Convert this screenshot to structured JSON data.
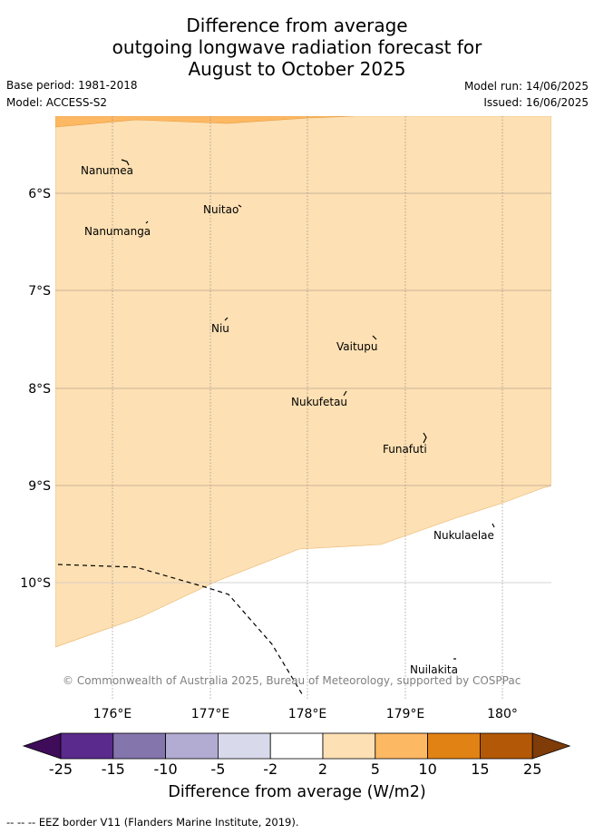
{
  "title_lines": [
    "Difference from average",
    "outgoing longwave radiation forecast for",
    "August to October 2025"
  ],
  "meta": {
    "base_period": "Base period: 1981-2018",
    "model": "Model: ACCESS-S2",
    "model_run": "Model run: 14/06/2025",
    "issued": "Issued: 16/06/2025"
  },
  "map": {
    "lat_labels": [
      "6°S",
      "7°S",
      "8°S",
      "9°S",
      "10°S"
    ],
    "lon_labels": [
      "176°E",
      "177°E",
      "178°E",
      "179°E",
      "180°"
    ],
    "islands": [
      {
        "name": "Nanumea"
      },
      {
        "name": "Nuitao"
      },
      {
        "name": "Nanumanga"
      },
      {
        "name": "Niu"
      },
      {
        "name": "Vaitupu"
      },
      {
        "name": "Nukufetau"
      },
      {
        "name": "Funafuti"
      },
      {
        "name": "Nukulaelae"
      },
      {
        "name": "Nuilakita"
      }
    ],
    "copyright": "© Commonwealth of Australia 2025, Bureau of Meteorology, supported by COSPPac",
    "fill_colors": {
      "light_orange_2_to_5": "#fde0b3",
      "orange_5_to_10": "#fdb863"
    }
  },
  "colorbar": {
    "ticks": [
      "-25",
      "-15",
      "-10",
      "-5",
      "-2",
      "2",
      "5",
      "10",
      "15",
      "25"
    ],
    "colors": [
      "#3f0c5a",
      "#5a2a8c",
      "#8475ad",
      "#b2abd2",
      "#d8daeb",
      "#ffffff",
      "#fde0b3",
      "#fdb863",
      "#e08214",
      "#b35806",
      "#7f3b08"
    ],
    "label": "Difference from average (W/m2)"
  },
  "footnote": "-- -- -- EEZ border V11 (Flanders Marine Institute, 2019)."
}
